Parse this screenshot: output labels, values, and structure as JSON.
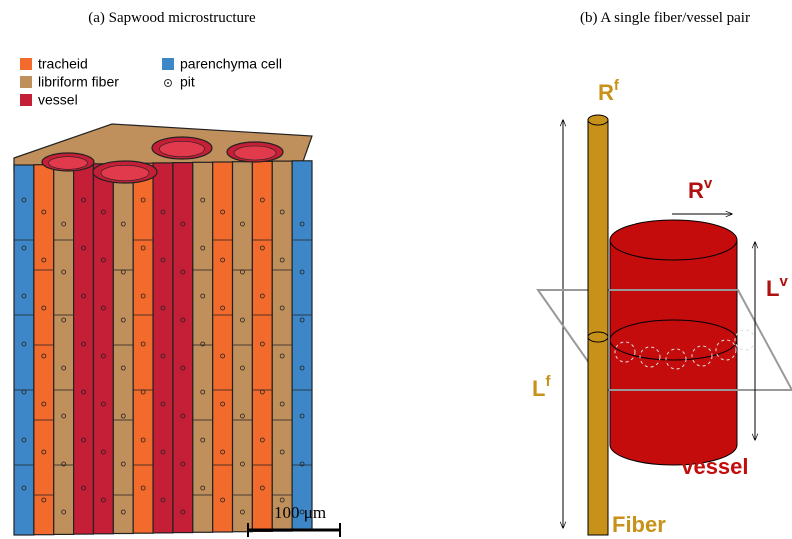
{
  "panels": [
    {
      "caption": "(a) Sapwood microstructure",
      "legend": [
        {
          "label": "tracheid",
          "color": "#f26a2c"
        },
        {
          "label": "libriform fiber",
          "color": "#c0905c"
        },
        {
          "label": "vessel",
          "color": "#c41f36"
        },
        {
          "label": "parenchyma cell",
          "color": "#3d87c9"
        },
        {
          "label": "pit"
        }
      ],
      "scale_bar": "100 μm"
    },
    {
      "caption": "(b) A single fiber/vessel pair",
      "labels": {
        "fiber_radius": {
          "base": "R",
          "sup": "f"
        },
        "vessel_radius": {
          "base": "R",
          "sup": "v"
        },
        "vessel_length": {
          "base": "L",
          "sup": "v"
        },
        "fiber_length": {
          "base": "L",
          "sup": "f"
        },
        "vessel": "Vessel",
        "fiber": "Fiber"
      }
    }
  ]
}
